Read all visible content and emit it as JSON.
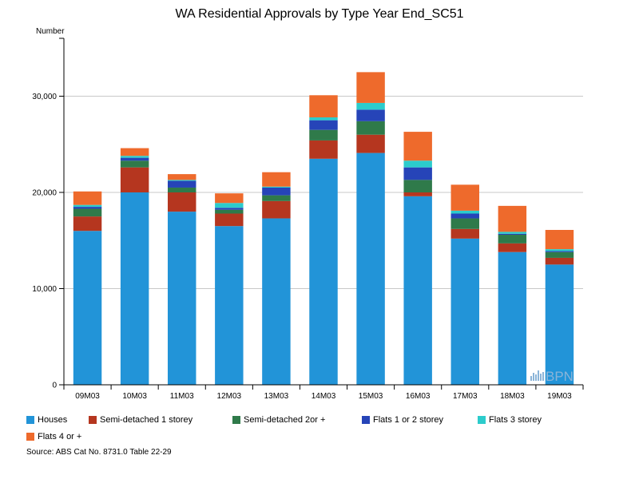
{
  "chart_data": {
    "type": "bar",
    "stacked": true,
    "title": "WA Residential Approvals by Type Year End_SC51",
    "ylabel": "Number",
    "xlabel": "",
    "ylim": [
      0,
      35000
    ],
    "yticks": [
      0,
      10000,
      20000,
      30000
    ],
    "ytick_labels": [
      "0",
      "10,000",
      "20,000",
      "30,000"
    ],
    "grid": true,
    "categories": [
      "09M03",
      "10M03",
      "11M03",
      "12M03",
      "13M03",
      "14M03",
      "15M03",
      "16M03",
      "17M03",
      "18M03",
      "19M03"
    ],
    "series": [
      {
        "name": "Houses",
        "color": "#2294d8",
        "values": [
          16000,
          20000,
          18000,
          16500,
          17300,
          23500,
          24100,
          19600,
          15200,
          13800,
          12500
        ]
      },
      {
        "name": "Semi-detached 1 storey",
        "color": "#b5361f",
        "values": [
          1500,
          2600,
          2000,
          1300,
          1800,
          1900,
          1900,
          400,
          1000,
          900,
          700
        ]
      },
      {
        "name": "Semi-detached 2or +",
        "color": "#2f7a4a",
        "values": [
          800,
          700,
          500,
          400,
          600,
          1100,
          1400,
          1300,
          1100,
          900,
          600
        ]
      },
      {
        "name": "Flats 1 or 2 storey",
        "color": "#2644b8",
        "values": [
          200,
          300,
          700,
          200,
          800,
          1000,
          1200,
          1300,
          500,
          100,
          100
        ]
      },
      {
        "name": "Flats 3 storey",
        "color": "#2ccccc",
        "values": [
          200,
          200,
          100,
          500,
          100,
          300,
          700,
          700,
          300,
          200,
          200
        ]
      },
      {
        "name": "Flats 4 or +",
        "color": "#ee6a2c",
        "values": [
          1400,
          800,
          600,
          1000,
          1500,
          2300,
          3200,
          3000,
          2700,
          2700,
          2000
        ]
      }
    ]
  },
  "source": "Source: ABS Cat No. 8731.0 Table 22-29",
  "watermark": "BPN"
}
